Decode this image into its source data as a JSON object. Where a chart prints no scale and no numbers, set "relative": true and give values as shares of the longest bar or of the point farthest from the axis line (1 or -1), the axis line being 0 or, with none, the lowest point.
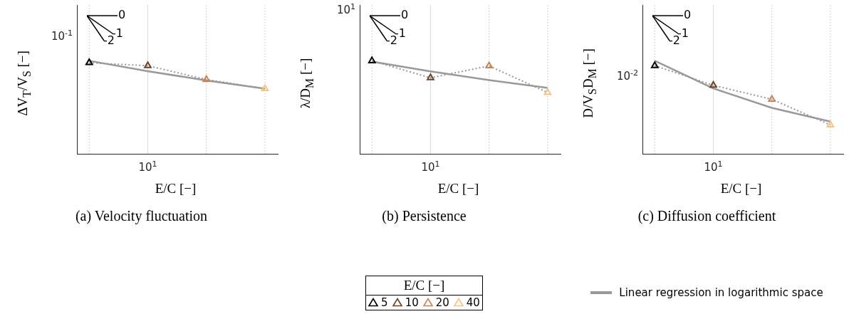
{
  "chart_data": [
    {
      "type": "line",
      "title": "(a) Velocity fluctuation",
      "xlabel": "E/C [−]",
      "ylabel": "ΔV$_{T}$/V$_{S}$ [−]",
      "relative": true,
      "grid": "x",
      "legend": false,
      "categories": [
        null,
        null,
        null,
        null
      ],
      "annotations": [
        "0",
        "-1",
        "-2",
        "10$^{-1}$",
        "10$^{1}$"
      ],
      "series": [
        {
          "type": "line",
          "color": "#999999",
          "colors": [
            "#000000",
            "#6b4329",
            "#c9855a",
            "#f5c47f"
          ],
          "line_style": "dotted",
          "marker": "triangle",
          "values": [
            0.979,
            0.947,
            0.799,
            0.7
          ]
        },
        {
          "type": "line",
          "color": "#999999",
          "line_style": "solid",
          "marker": "none",
          "values": [
            1,
            0.888,
            0.789,
            0.7
          ]
        }
      ]
    },
    {
      "type": "line",
      "title": "(b) Persistence",
      "xlabel": "E/C [−]",
      "ylabel": "λ/D$_{M}$ [−]",
      "relative": true,
      "grid": "x",
      "legend": false,
      "categories": [
        null,
        null,
        null,
        null
      ],
      "annotations": [
        "0",
        "-1",
        "-2",
        "10$^{1}$",
        "10$^{1}$"
      ],
      "series": [
        {
          "type": "line",
          "color": "#999999",
          "colors": [
            "#000000",
            "#6b4329",
            "#c9855a",
            "#f5c47f"
          ],
          "line_style": "dotted",
          "marker": "triangle",
          "values": [
            1,
            0.817,
            0.945,
            0.658
          ]
        },
        {
          "type": "line",
          "color": "#999999",
          "line_style": "solid",
          "marker": "none",
          "values": [
            0.991,
            0.886,
            0.792,
            0.708
          ]
        }
      ]
    },
    {
      "type": "line",
      "title": "(c) Diffusion coefficient",
      "xlabel": "E/C [−]",
      "ylabel": "D/V$_{S}$D$_{M}$ [−]",
      "relative": true,
      "grid": "x",
      "legend": "bottom",
      "categories": [
        null,
        null,
        null,
        null
      ],
      "annotations": [
        "0",
        "-1",
        "-2",
        "10$^{-2}$",
        "10$^{1}$"
      ],
      "series": [
        {
          "type": "line",
          "color": "#999999",
          "colors": [
            "#000000",
            "#6b4329",
            "#c9855a",
            "#f5c47f"
          ],
          "line_style": "dotted",
          "marker": "triangle",
          "values": [
            0.948,
            0.736,
            0.586,
            0.31
          ]
        },
        {
          "type": "line",
          "name": "Linear regression in logarithmic space",
          "color": "#999999",
          "line_style": "solid",
          "marker": "none",
          "values": [
            1,
            0.703,
            0.494,
            0.347
          ]
        }
      ]
    },
    {
      "type": "other",
      "title": "E/C [−]",
      "categories": [
        "5",
        "10",
        "20",
        "40"
      ],
      "colors": [
        "#000000",
        "#6b4329",
        "#c9855a",
        "#f5c47f"
      ]
    }
  ]
}
